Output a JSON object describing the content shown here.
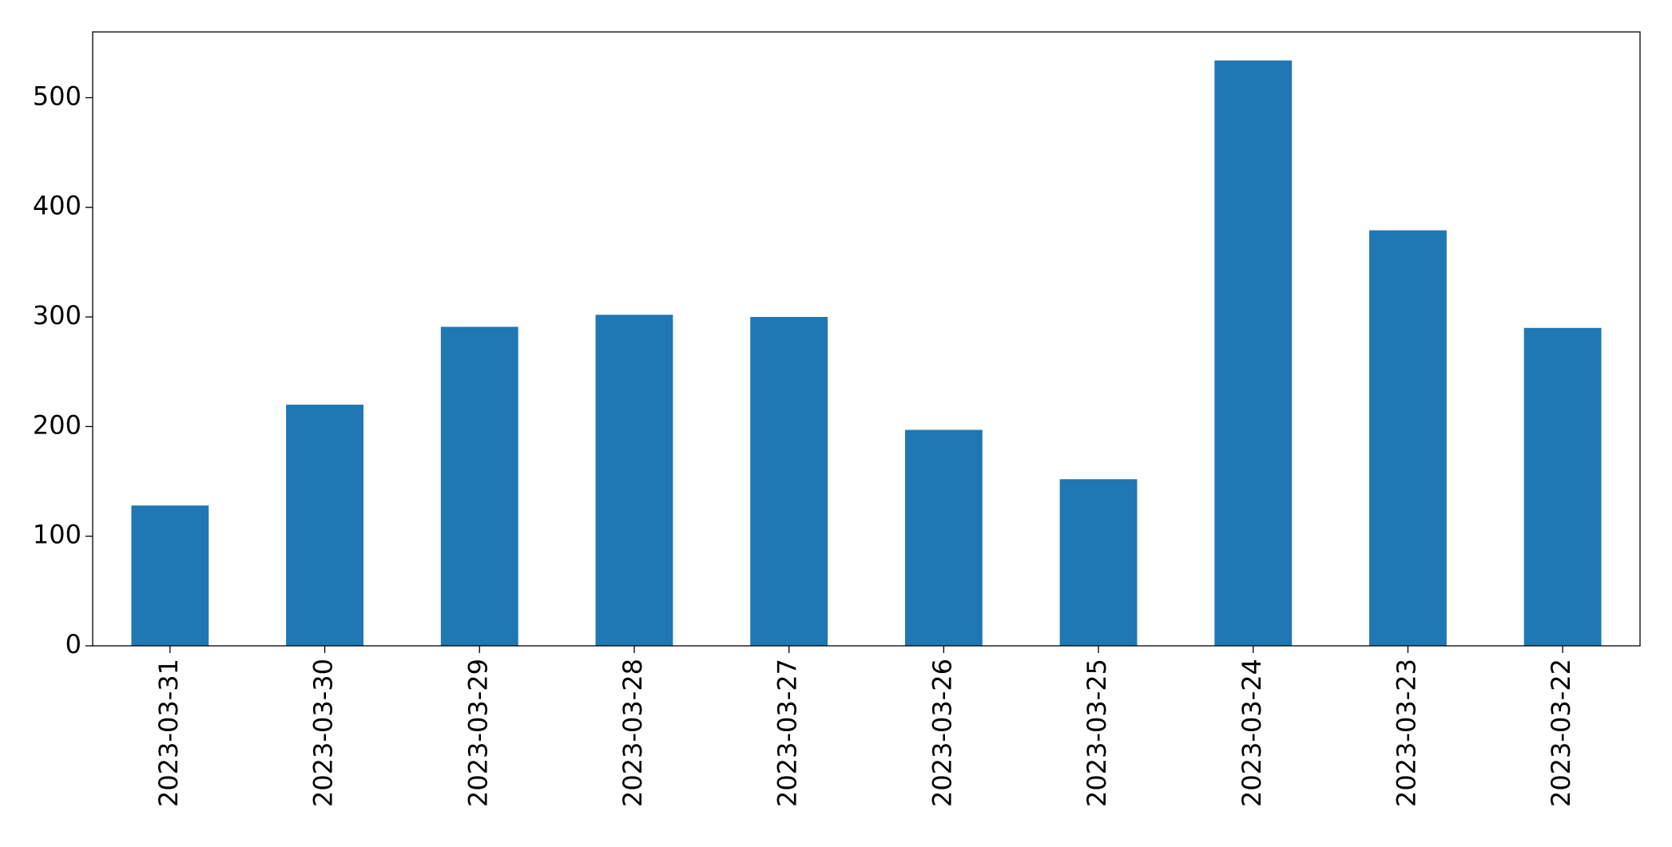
{
  "chart_data": {
    "type": "bar",
    "categories": [
      "2023-03-31",
      "2023-03-30",
      "2023-03-29",
      "2023-03-28",
      "2023-03-27",
      "2023-03-26",
      "2023-03-25",
      "2023-03-24",
      "2023-03-23",
      "2023-03-22"
    ],
    "values": [
      128,
      220,
      291,
      302,
      300,
      197,
      152,
      534,
      379,
      290
    ],
    "color": "#1f77b4",
    "ylim": [
      0,
      560
    ],
    "yticks": [
      0,
      100,
      200,
      300,
      400,
      500
    ],
    "grid": false
  }
}
